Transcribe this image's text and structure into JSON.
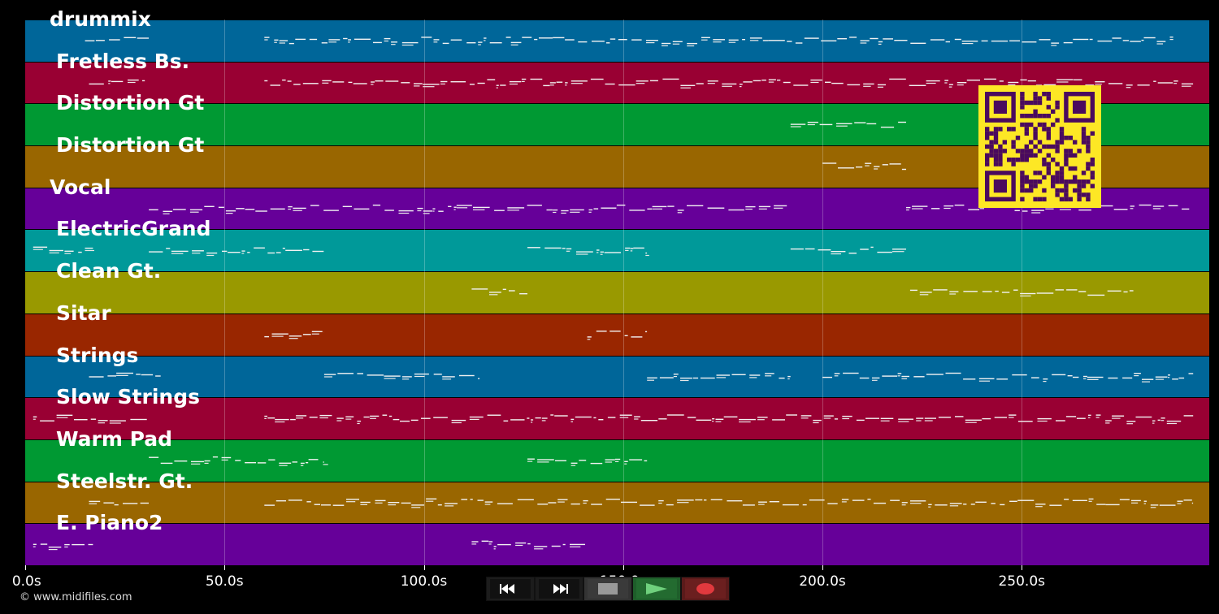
{
  "app": {
    "copyright": "© www.midifiles.com"
  },
  "timeline": {
    "duration_s": 297,
    "ticks": [
      {
        "t": 0,
        "label": "0.0s"
      },
      {
        "t": 50,
        "label": "50.0s"
      },
      {
        "t": 100,
        "label": "100.0s"
      },
      {
        "t": 150,
        "label": "150.0s"
      },
      {
        "t": 200,
        "label": "200.0s"
      },
      {
        "t": 250,
        "label": "250.0s"
      }
    ]
  },
  "tracks": [
    {
      "name": "drummix",
      "color": "#006699",
      "bold_offset": false,
      "segments": [
        [
          15,
          31
        ],
        [
          60,
          288
        ]
      ]
    },
    {
      "name": "Fretless Bs.",
      "color": "#990033",
      "bold_offset": true,
      "segments": [
        [
          16,
          30
        ],
        [
          60,
          293
        ]
      ]
    },
    {
      "name": "Distortion Gt",
      "color": "#009933",
      "bold_offset": true,
      "segments": [
        [
          192,
          221
        ]
      ]
    },
    {
      "name": "Distortion Gt",
      "color": "#996600",
      "bold_offset": true,
      "segments": [
        [
          200,
          221
        ]
      ]
    },
    {
      "name": "Vocal",
      "color": "#660099",
      "bold_offset": false,
      "segments": [
        [
          31,
          192
        ],
        [
          221,
          292
        ]
      ]
    },
    {
      "name": "ElectricGrand",
      "color": "#009999",
      "bold_offset": true,
      "segments": [
        [
          2,
          17
        ],
        [
          31,
          75
        ],
        [
          126,
          156
        ],
        [
          192,
          221
        ]
      ]
    },
    {
      "name": "Clean Gt.",
      "color": "#999900",
      "bold_offset": true,
      "segments": [
        [
          112,
          126
        ],
        [
          222,
          278
        ]
      ]
    },
    {
      "name": "Sitar",
      "color": "#992600",
      "bold_offset": true,
      "segments": [
        [
          60,
          75
        ],
        [
          141,
          156
        ]
      ]
    },
    {
      "name": "Strings",
      "color": "#006699",
      "bold_offset": true,
      "segments": [
        [
          16,
          34
        ],
        [
          75,
          114
        ],
        [
          156,
          192
        ],
        [
          200,
          293
        ]
      ]
    },
    {
      "name": "Slow Strings",
      "color": "#990033",
      "bold_offset": true,
      "segments": [
        [
          2,
          31
        ],
        [
          60,
          293
        ]
      ]
    },
    {
      "name": "Warm Pad",
      "color": "#009933",
      "bold_offset": true,
      "segments": [
        [
          31,
          75
        ],
        [
          126,
          156
        ]
      ]
    },
    {
      "name": "Steelstr. Gt.",
      "color": "#996600",
      "bold_offset": true,
      "segments": [
        [
          16,
          31
        ],
        [
          60,
          293
        ]
      ]
    },
    {
      "name": "E. Piano2",
      "color": "#660099",
      "bold_offset": true,
      "segments": [
        [
          2,
          17
        ],
        [
          112,
          141
        ]
      ]
    }
  ],
  "transport": {
    "buttons": [
      {
        "name": "rewind-button",
        "icon": "rewind-icon"
      },
      {
        "name": "fast-forward-button",
        "icon": "fast-forward-icon"
      },
      {
        "name": "stop-button",
        "icon": "stop-icon"
      },
      {
        "name": "play-button",
        "icon": "play-icon"
      },
      {
        "name": "record-button",
        "icon": "record-icon"
      }
    ]
  },
  "qr_code": {
    "icon": "qr-code-icon",
    "fg": "#4a0a5e",
    "bg": "#fde725"
  }
}
